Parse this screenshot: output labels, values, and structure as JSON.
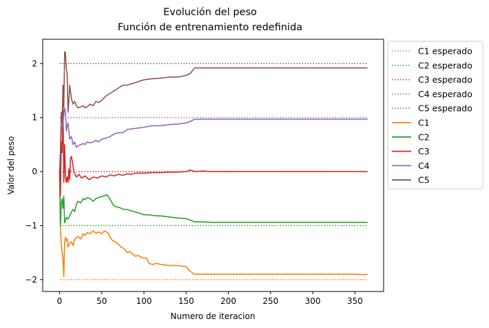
{
  "chart_data": {
    "type": "line",
    "title": "Evolución del peso",
    "subtitle": "Función de entrenamiento redefinida",
    "xlabel": "Numero de iteracion",
    "ylabel": "Valor del peso",
    "xlim": [
      -20,
      384
    ],
    "ylim": [
      -2.22,
      2.45
    ],
    "xticks": [
      0,
      50,
      100,
      150,
      200,
      250,
      300,
      350
    ],
    "yticks": [
      -2,
      -1,
      0,
      1,
      2
    ],
    "ytick_labels": [
      "−2",
      "−1",
      "0",
      "1",
      "2"
    ],
    "grid": false,
    "legend_position": "outside-right-top",
    "expected": [
      {
        "name": "C1 esperado",
        "value": -2,
        "x_range": [
          0,
          365
        ],
        "color": "#ff7f0e"
      },
      {
        "name": "C2 esperado",
        "value": -1,
        "x_range": [
          0,
          365
        ],
        "color": "#2ca02c"
      },
      {
        "name": "C3 esperado",
        "value": 0,
        "x_range": [
          0,
          365
        ],
        "color": "#d62728"
      },
      {
        "name": "C4 esperado",
        "value": 1,
        "x_range": [
          0,
          365
        ],
        "color": "#9467bd"
      },
      {
        "name": "C5 esperado",
        "value": 2,
        "x_range": [
          0,
          365
        ],
        "color": "#8c564b"
      }
    ],
    "series": [
      {
        "name": "C1",
        "color": "#ff7f0e",
        "x": [
          0,
          1,
          2,
          3,
          4,
          5,
          6,
          7,
          8,
          9,
          10,
          12,
          14,
          16,
          18,
          20,
          22,
          25,
          28,
          30,
          33,
          36,
          40,
          43,
          46,
          50,
          53,
          56,
          58,
          60,
          63,
          66,
          70,
          73,
          76,
          80,
          83,
          86,
          90,
          93,
          96,
          100,
          103,
          106,
          110,
          115,
          120,
          125,
          130,
          140,
          150,
          155,
          160,
          170,
          180,
          200,
          220,
          250,
          280,
          300,
          330,
          350,
          360,
          365
        ],
        "y": [
          0,
          -1.0,
          -1.35,
          -1.5,
          -1.6,
          -1.95,
          -1.3,
          -1.22,
          -1.28,
          -1.25,
          -1.4,
          -1.33,
          -1.3,
          -1.37,
          -1.25,
          -1.22,
          -1.2,
          -1.25,
          -1.15,
          -1.18,
          -1.13,
          -1.15,
          -1.1,
          -1.14,
          -1.12,
          -1.15,
          -1.1,
          -1.12,
          -1.15,
          -1.22,
          -1.28,
          -1.3,
          -1.35,
          -1.4,
          -1.42,
          -1.5,
          -1.48,
          -1.52,
          -1.57,
          -1.55,
          -1.58,
          -1.6,
          -1.6,
          -1.7,
          -1.72,
          -1.7,
          -1.72,
          -1.73,
          -1.74,
          -1.74,
          -1.76,
          -1.85,
          -1.9,
          -1.9,
          -1.9,
          -1.9,
          -1.9,
          -1.9,
          -1.9,
          -1.9,
          -1.9,
          -1.9,
          -1.91,
          -1.9
        ]
      },
      {
        "name": "C2",
        "color": "#2ca02c",
        "x": [
          0,
          1,
          2,
          3,
          4,
          5,
          6,
          7,
          8,
          10,
          12,
          14,
          16,
          18,
          20,
          22,
          25,
          28,
          30,
          33,
          36,
          40,
          43,
          46,
          50,
          53,
          56,
          58,
          60,
          63,
          66,
          70,
          73,
          76,
          80,
          83,
          86,
          90,
          95,
          100,
          105,
          110,
          115,
          120,
          130,
          140,
          150,
          155,
          160,
          170,
          180,
          200,
          220,
          250,
          280,
          300,
          330,
          350,
          360,
          365
        ],
        "y": [
          0,
          -1.0,
          -0.6,
          -0.5,
          -0.68,
          -0.45,
          -0.95,
          -0.9,
          -0.85,
          -0.88,
          -0.82,
          -0.75,
          -0.7,
          -0.74,
          -0.6,
          -0.55,
          -0.58,
          -0.5,
          -0.52,
          -0.48,
          -0.5,
          -0.55,
          -0.5,
          -0.48,
          -0.46,
          -0.45,
          -0.43,
          -0.46,
          -0.52,
          -0.6,
          -0.65,
          -0.66,
          -0.68,
          -0.7,
          -0.7,
          -0.72,
          -0.73,
          -0.75,
          -0.77,
          -0.8,
          -0.8,
          -0.81,
          -0.82,
          -0.82,
          -0.84,
          -0.86,
          -0.87,
          -0.9,
          -0.93,
          -0.93,
          -0.94,
          -0.94,
          -0.94,
          -0.94,
          -0.94,
          -0.94,
          -0.94,
          -0.94,
          -0.94,
          -0.94
        ]
      },
      {
        "name": "C3",
        "color": "#d62728",
        "x": [
          0,
          1,
          2,
          3,
          4,
          5,
          6,
          7,
          8,
          9,
          10,
          11,
          12,
          13,
          14,
          15,
          17,
          20,
          23,
          26,
          30,
          35,
          40,
          45,
          50,
          55,
          60,
          65,
          70,
          75,
          80,
          85,
          90,
          100,
          110,
          120,
          130,
          140,
          150,
          155,
          160,
          170,
          180,
          200,
          220,
          250,
          280,
          300,
          330,
          350,
          365
        ],
        "y": [
          0,
          -0.45,
          0.55,
          0.35,
          1.38,
          -0.2,
          0.5,
          -0.1,
          -0.2,
          -0.1,
          -0.2,
          0.05,
          -0.15,
          0.25,
          0.28,
          0.2,
          0.0,
          -0.1,
          -0.05,
          -0.12,
          -0.08,
          -0.15,
          -0.1,
          -0.12,
          -0.08,
          -0.1,
          -0.06,
          -0.08,
          -0.05,
          -0.07,
          -0.04,
          -0.05,
          -0.03,
          -0.03,
          -0.02,
          -0.02,
          -0.01,
          -0.01,
          0.0,
          0.03,
          0.0,
          0.01,
          0.0,
          0.0,
          0.0,
          0.0,
          0.0,
          0.0,
          0.0,
          0.0,
          0.0
        ]
      },
      {
        "name": "C4",
        "color": "#9467bd",
        "x": [
          0,
          1,
          2,
          3,
          4,
          5,
          6,
          7,
          8,
          9,
          10,
          12,
          14,
          16,
          18,
          20,
          22,
          25,
          28,
          30,
          33,
          36,
          40,
          43,
          46,
          50,
          55,
          60,
          65,
          70,
          75,
          80,
          90,
          100,
          110,
          120,
          130,
          140,
          150,
          155,
          160,
          170,
          180,
          200,
          220,
          250,
          280,
          300,
          330,
          350,
          365
        ],
        "y": [
          0,
          0.4,
          0.85,
          0.75,
          0.9,
          1.05,
          1.18,
          1.1,
          0.75,
          0.85,
          0.9,
          0.6,
          0.65,
          0.5,
          0.55,
          0.45,
          0.48,
          0.5,
          0.52,
          0.5,
          0.55,
          0.53,
          0.55,
          0.58,
          0.55,
          0.6,
          0.62,
          0.65,
          0.7,
          0.72,
          0.72,
          0.78,
          0.8,
          0.82,
          0.85,
          0.85,
          0.87,
          0.88,
          0.9,
          0.93,
          0.97,
          0.97,
          0.97,
          0.97,
          0.97,
          0.97,
          0.97,
          0.97,
          0.97,
          0.97,
          0.97
        ]
      },
      {
        "name": "C5",
        "color": "#8c564b",
        "x": [
          0,
          1,
          2,
          3,
          4,
          5,
          6,
          7,
          8,
          9,
          10,
          11,
          12,
          14,
          16,
          18,
          20,
          22,
          25,
          28,
          30,
          33,
          36,
          40,
          43,
          46,
          50,
          55,
          60,
          65,
          70,
          75,
          80,
          90,
          100,
          110,
          120,
          130,
          140,
          150,
          155,
          160,
          170,
          180,
          200,
          220,
          250,
          280,
          300,
          330,
          350,
          365
        ],
        "y": [
          0,
          0.3,
          1.1,
          0.9,
          1.6,
          1.2,
          2.22,
          2.2,
          1.9,
          1.8,
          1.1,
          1.3,
          1.6,
          1.35,
          1.25,
          1.3,
          1.22,
          1.18,
          1.2,
          1.22,
          1.18,
          1.2,
          1.25,
          1.22,
          1.3,
          1.28,
          1.32,
          1.4,
          1.45,
          1.5,
          1.55,
          1.6,
          1.6,
          1.65,
          1.7,
          1.72,
          1.73,
          1.75,
          1.75,
          1.78,
          1.82,
          1.92,
          1.92,
          1.92,
          1.92,
          1.92,
          1.92,
          1.92,
          1.92,
          1.92,
          1.92,
          1.92
        ]
      }
    ]
  }
}
